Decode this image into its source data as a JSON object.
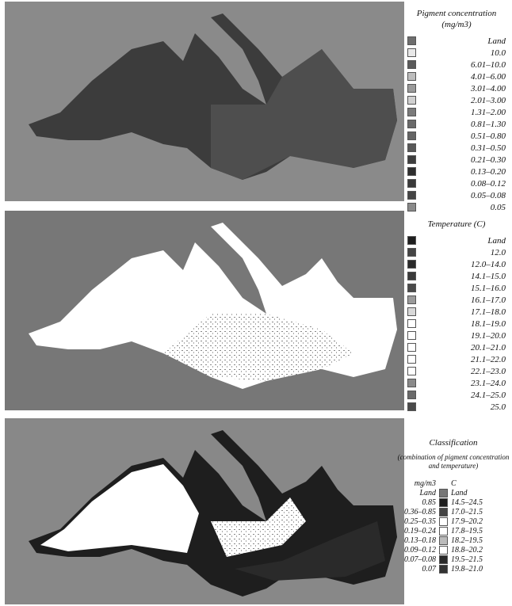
{
  "panels": [
    {
      "legend": {
        "title": "Pigment concentration (mg/m3)",
        "items": [
          {
            "label": "Land",
            "color": "#6e6e6e"
          },
          {
            "label": "10.0",
            "color": "#e8e8e8"
          },
          {
            "label": "6.01–10.0",
            "color": "#5a5a5a"
          },
          {
            "label": "4.01–6.00",
            "color": "#bdbdbd"
          },
          {
            "label": "3.01–4.00",
            "color": "#9a9a9a"
          },
          {
            "label": "2.01–3.00",
            "color": "#d0d0d0"
          },
          {
            "label": "1.31–2.00",
            "color": "#7a7a7a"
          },
          {
            "label": "0.81–1.30",
            "color": "#6a6a6a"
          },
          {
            "label": "0.51–0.80",
            "color": "#646464"
          },
          {
            "label": "0.31–0.50",
            "color": "#585858"
          },
          {
            "label": "0.21–0.30",
            "color": "#3e3e3e"
          },
          {
            "label": "0.13–0.20",
            "color": "#2e2e2e"
          },
          {
            "label": "0.08–0.12",
            "color": "#3a3a3a"
          },
          {
            "label": "0.05–0.08",
            "color": "#444444"
          },
          {
            "label": "0.05",
            "color": "#8a8a8a"
          }
        ]
      }
    },
    {
      "legend": {
        "title": "Temperature (C)",
        "items": [
          {
            "label": "Land",
            "color": "#1e1e1e"
          },
          {
            "label": "12.0",
            "color": "#444444"
          },
          {
            "label": "12.0–14.0",
            "color": "#2a2a2a"
          },
          {
            "label": "14.1–15.0",
            "color": "#3a3a3a"
          },
          {
            "label": "15.1–16.0",
            "color": "#4a4a4a"
          },
          {
            "label": "16.1–17.0",
            "color": "#9a9a9a"
          },
          {
            "label": "17.1–18.0",
            "color": "#d8d8d8"
          },
          {
            "label": "18.1–19.0",
            "color": "#ffffff"
          },
          {
            "label": "19.1–20.0",
            "color": "#ffffff"
          },
          {
            "label": "20.1–21.0",
            "color": "#ffffff"
          },
          {
            "label": "21.1–22.0",
            "color": "#ffffff"
          },
          {
            "label": "22.1–23.0",
            "color": "#ffffff"
          },
          {
            "label": "23.1–24.0",
            "color": "#8a8a8a"
          },
          {
            "label": "24.1–25.0",
            "color": "#6a6a6a"
          },
          {
            "label": "25.0",
            "color": "#4a4a4a"
          }
        ]
      }
    },
    {
      "legend": {
        "title": "Classification",
        "subtitle": "(combination of pigment concentration and temperature)",
        "headers": [
          "mg/m3",
          "C"
        ],
        "rows": [
          {
            "pigment": "Land",
            "temperature": "Land",
            "color": "#777777"
          },
          {
            "pigment": "0.85",
            "temperature": "14.5–24.5",
            "color": "#1e1e1e"
          },
          {
            "pigment": "0.36–0.85",
            "temperature": "17.0–21.5",
            "color": "#444444"
          },
          {
            "pigment": "0.25–0.35",
            "temperature": "17.9–20.2",
            "color": "#ffffff"
          },
          {
            "pigment": "0.19–0.24",
            "temperature": "17.8–19.5",
            "color": "#ffffff"
          },
          {
            "pigment": "0.13–0.18",
            "temperature": "18.2–19.5",
            "color": "#bbbbbb"
          },
          {
            "pigment": "0.09–0.12",
            "temperature": "18.8–20.2",
            "color": "#ffffff"
          },
          {
            "pigment": "0.07–0.08",
            "temperature": "19.5–21.5",
            "color": "#2a2a2a"
          },
          {
            "pigment": "0.07",
            "temperature": "19.8–21.0",
            "color": "#333333"
          }
        ]
      }
    }
  ]
}
